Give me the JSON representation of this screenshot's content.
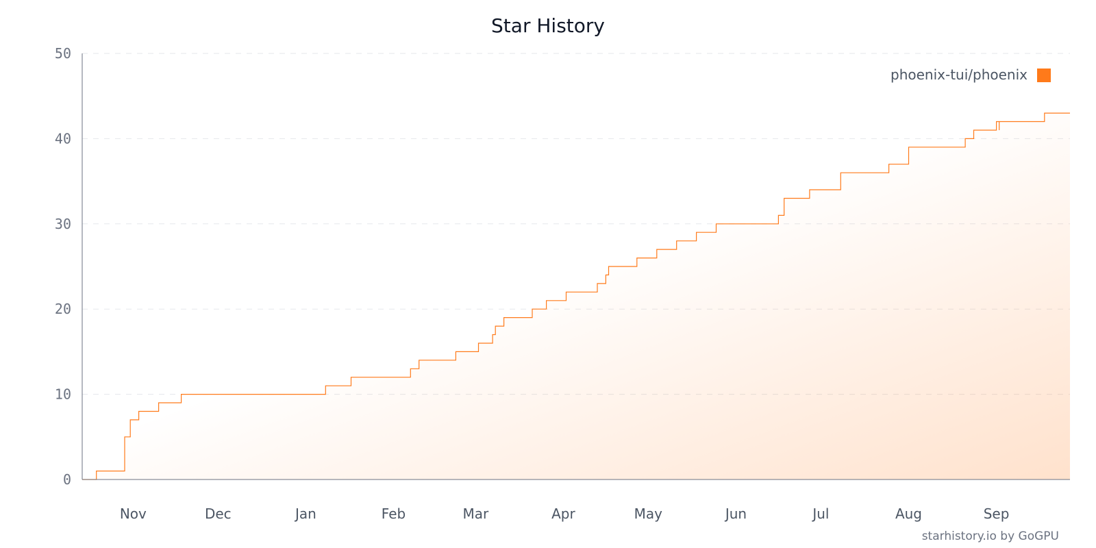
{
  "chart_data": {
    "type": "line",
    "title": "Star History",
    "ylim": [
      0,
      50
    ],
    "yticks": [
      "0",
      "10",
      "20",
      "30",
      "40",
      "50"
    ],
    "x_domain": [
      "2023-10-14",
      "2024-09-27"
    ],
    "xticks": [
      {
        "label": "Nov",
        "date": "2023-11-01"
      },
      {
        "label": "Dec",
        "date": "2023-12-01"
      },
      {
        "label": "Jan",
        "date": "2024-01-01"
      },
      {
        "label": "Feb",
        "date": "2024-02-01"
      },
      {
        "label": "Mar",
        "date": "2024-03-01"
      },
      {
        "label": "Apr",
        "date": "2024-04-01"
      },
      {
        "label": "May",
        "date": "2024-05-01"
      },
      {
        "label": "Jun",
        "date": "2024-06-01"
      },
      {
        "label": "Jul",
        "date": "2024-07-01"
      },
      {
        "label": "Aug",
        "date": "2024-08-01"
      },
      {
        "label": "Sep",
        "date": "2024-09-01"
      }
    ],
    "grid": "horizontal-dashed",
    "legend_position": "top-right",
    "series": [
      {
        "name": "phoenix-tui/phoenix",
        "color": "#ff7a1a",
        "step": true,
        "points": [
          {
            "x": "2023-10-14",
            "y": 0
          },
          {
            "x": "2023-10-19",
            "y": 1
          },
          {
            "x": "2023-10-29",
            "y": 5
          },
          {
            "x": "2023-10-31",
            "y": 7
          },
          {
            "x": "2023-11-03",
            "y": 8
          },
          {
            "x": "2023-11-10",
            "y": 9
          },
          {
            "x": "2023-11-18",
            "y": 10
          },
          {
            "x": "2024-01-08",
            "y": 11
          },
          {
            "x": "2024-01-17",
            "y": 12
          },
          {
            "x": "2024-02-07",
            "y": 13
          },
          {
            "x": "2024-02-10",
            "y": 14
          },
          {
            "x": "2024-02-23",
            "y": 15
          },
          {
            "x": "2024-03-02",
            "y": 16
          },
          {
            "x": "2024-03-07",
            "y": 17
          },
          {
            "x": "2024-03-08",
            "y": 18
          },
          {
            "x": "2024-03-11",
            "y": 19
          },
          {
            "x": "2024-03-21",
            "y": 20
          },
          {
            "x": "2024-03-26",
            "y": 21
          },
          {
            "x": "2024-04-02",
            "y": 22
          },
          {
            "x": "2024-04-13",
            "y": 23
          },
          {
            "x": "2024-04-16",
            "y": 24
          },
          {
            "x": "2024-04-17",
            "y": 25
          },
          {
            "x": "2024-04-27",
            "y": 26
          },
          {
            "x": "2024-05-04",
            "y": 27
          },
          {
            "x": "2024-05-11",
            "y": 28
          },
          {
            "x": "2024-05-18",
            "y": 29
          },
          {
            "x": "2024-05-25",
            "y": 30
          },
          {
            "x": "2024-06-16",
            "y": 31
          },
          {
            "x": "2024-06-18",
            "y": 33
          },
          {
            "x": "2024-06-27",
            "y": 34
          },
          {
            "x": "2024-07-08",
            "y": 36
          },
          {
            "x": "2024-07-25",
            "y": 37
          },
          {
            "x": "2024-08-01",
            "y": 39
          },
          {
            "x": "2024-08-21",
            "y": 40
          },
          {
            "x": "2024-08-24",
            "y": 41
          },
          {
            "x": "2024-09-01",
            "y": 42
          },
          {
            "x": "2024-09-02",
            "y": 41
          },
          {
            "x": "2024-09-02",
            "y": 42
          },
          {
            "x": "2024-09-18",
            "y": 43
          },
          {
            "x": "2024-09-27",
            "y": 43
          }
        ]
      }
    ]
  },
  "credit": "starhistory.io by GoGPU"
}
